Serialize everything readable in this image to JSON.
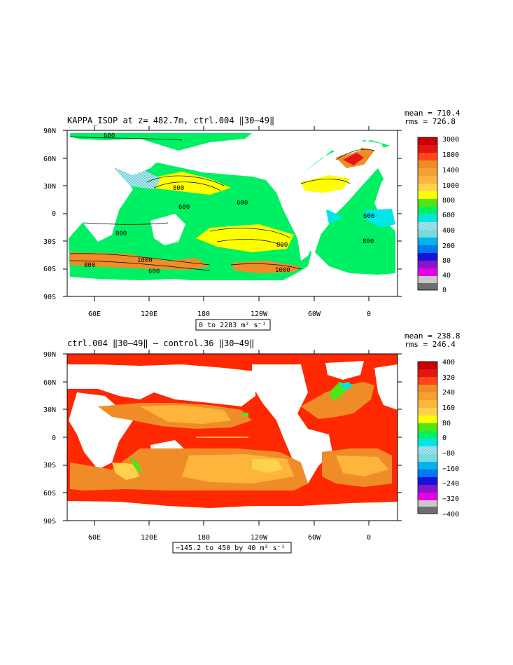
{
  "panels": [
    {
      "title": "KAPPA_ISOP at z= 482.7m, ctrl.004 ​‖30–49‖",
      "mean_text": "mean = 710.4",
      "rms_text": "rms = 726.8",
      "range_label": "0 to 2283 m² s⁻¹",
      "colorbar_labels": [
        "3000",
        "1800",
        "1400",
        "1000",
        "800",
        "600",
        "400",
        "200",
        "80",
        "40",
        "0"
      ],
      "contour_labels": [
        "600",
        "800",
        "600",
        "600",
        "800",
        "800",
        "600",
        "1000",
        "800",
        "600",
        "800",
        "1000",
        "800",
        "600"
      ]
    },
    {
      "title": "ctrl.004 ‖30–49‖ – control.36 ‖30–49‖",
      "mean_text": "mean = 238.8",
      "rms_text": "rms = 246.4",
      "range_label": "−145.2 to 450 by 40 m² s⁻¹",
      "colorbar_labels": [
        "400",
        "320",
        "240",
        "160",
        "80",
        "0",
        "−80",
        "−160",
        "−240",
        "−320",
        "−400"
      ],
      "contour_labels": []
    }
  ],
  "axes": {
    "lat_ticks": [
      "90N",
      "60N",
      "30N",
      "0",
      "30S",
      "60S",
      "90S"
    ],
    "lon_ticks": [
      "60E",
      "120E",
      "180",
      "120W",
      "60W",
      "0"
    ]
  },
  "colors": {
    "scale_top": [
      "#c80000",
      "#e61414",
      "#ff4614",
      "#f08c28",
      "#ffb43c",
      "#ffd24b",
      "#ffff00",
      "#50e614",
      "#00f064",
      "#00e6e6",
      "#78dcdc",
      "#00b4f0",
      "#0078f0",
      "#1414dc",
      "#8c14c8",
      "#e600e6",
      "#c8c8c8",
      "#6e6e6e"
    ],
    "land": "#ffffff",
    "top_field": "#00f064",
    "bottom_field": "#ff2800"
  }
}
